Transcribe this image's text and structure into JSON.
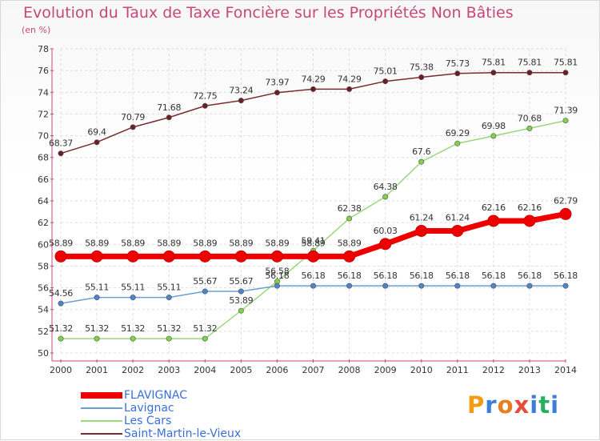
{
  "header": {
    "title": "Evolution du Taux de Taxe Foncière sur les Propriétés Non Bâties",
    "unit": "(en %)"
  },
  "brand": {
    "text": "Proxiti",
    "letters": [
      "P",
      "r",
      "o",
      "x",
      "i",
      "t",
      "i"
    ],
    "colors": [
      "#f39c12",
      "#3d7fd8",
      "#e67e22",
      "#e74c3c",
      "#3d7fd8",
      "#27ae60",
      "#3d7fd8"
    ]
  },
  "chart_data": {
    "type": "line",
    "title": "Evolution du Taux de Taxe Foncière sur les Propriétés Non Bâties",
    "ylabel": "(en %)",
    "xlabel": "",
    "x": [
      "2000",
      "2001",
      "2002",
      "2003",
      "2004",
      "2005",
      "2006",
      "2007",
      "2008",
      "2009",
      "2010",
      "2011",
      "2012",
      "2013",
      "2014"
    ],
    "ylim": [
      50,
      78
    ],
    "yticks": [
      "50",
      "52",
      "54",
      "56",
      "58",
      "60",
      "62",
      "64",
      "66",
      "68",
      "70",
      "72",
      "74",
      "76",
      "78"
    ],
    "grid": true,
    "legend_position": "bottom-left",
    "series": [
      {
        "name": "FLAVIGNAC",
        "color": "#ee0000",
        "point_color": "#ee0000",
        "values": [
          58.89,
          58.89,
          58.89,
          58.89,
          58.89,
          58.89,
          58.89,
          58.89,
          58.89,
          60.03,
          61.24,
          61.24,
          62.16,
          62.16,
          62.79
        ],
        "labels": [
          "58.89",
          "58.89",
          "58.89",
          "58.89",
          "58.89",
          "58.89",
          "58.89",
          "58.89",
          "58.89",
          "60.03",
          "61.24",
          "61.24",
          "62.16",
          "62.16",
          "62.79"
        ]
      },
      {
        "name": "Lavignac",
        "color": "#6a9fd0",
        "point_color": "#4a86c8",
        "values": [
          54.56,
          55.11,
          55.11,
          55.11,
          55.67,
          55.67,
          56.18,
          56.18,
          56.18,
          56.18,
          56.18,
          56.18,
          56.18,
          56.18,
          56.18
        ],
        "labels": [
          "54.56",
          "55.11",
          "55.11",
          "55.11",
          "55.67",
          "55.67",
          "56.18",
          "56.18",
          "56.18",
          "56.18",
          "56.18",
          "56.18",
          "56.18",
          "56.18",
          "56.18"
        ]
      },
      {
        "name": "Les Cars",
        "color": "#9ad87a",
        "point_color": "#7fd04a",
        "values": [
          51.32,
          51.32,
          51.32,
          51.32,
          51.32,
          53.89,
          56.58,
          59.41,
          62.38,
          64.38,
          67.6,
          69.29,
          69.98,
          70.68,
          71.39
        ],
        "labels": [
          "51.32",
          "51.32",
          "51.32",
          "51.32",
          "51.32",
          "53.89",
          "56.58",
          "59.41",
          "62.38",
          "64.38",
          "67.6",
          "69.29",
          "69.98",
          "70.68",
          "71.39"
        ]
      },
      {
        "name": "Saint-Martin-le-Vieux",
        "color": "#7a2a30",
        "point_color": "#6a1f25",
        "values": [
          68.37,
          69.4,
          70.79,
          71.68,
          72.75,
          73.24,
          73.97,
          74.29,
          74.29,
          75.01,
          75.38,
          75.73,
          75.81,
          75.81,
          75.81
        ],
        "labels": [
          "68.37",
          "69.4",
          "70.79",
          "71.68",
          "72.75",
          "73.24",
          "73.97",
          "74.29",
          "74.29",
          "75.01",
          "75.38",
          "75.73",
          "75.81",
          "75.81",
          "75.81"
        ]
      }
    ]
  }
}
